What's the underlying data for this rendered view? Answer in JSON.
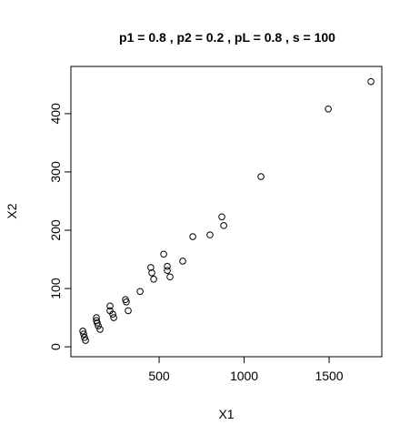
{
  "chart_data": {
    "type": "scatter",
    "title": "p1 = 0.8 ,  p2 = 0.2 ,  pL = 0.8 , s = 100",
    "x_label": "X1",
    "y_label": "X2",
    "xlim": [
      -19,
      1810
    ],
    "ylim": [
      -17,
      481
    ],
    "xticks": [
      500,
      1000,
      1500
    ],
    "yticks": [
      0,
      100,
      200,
      300,
      400
    ],
    "color": "#000000",
    "x": [
      1746,
      1495,
      1099,
      869,
      880,
      799,
      698,
      639,
      527,
      548,
      548,
      564,
      451,
      457,
      468,
      388,
      302,
      307,
      318,
      211,
      211,
      227,
      233,
      131,
      131,
      136,
      142,
      152,
      51,
      56,
      61,
      67
    ],
    "y": [
      455,
      408,
      292,
      223,
      208,
      192,
      189,
      147,
      159,
      138,
      131,
      120,
      136,
      127,
      116,
      95,
      81,
      77,
      62,
      70,
      62,
      56,
      50,
      50,
      45,
      41,
      36,
      30,
      27,
      22,
      16,
      11
    ]
  }
}
